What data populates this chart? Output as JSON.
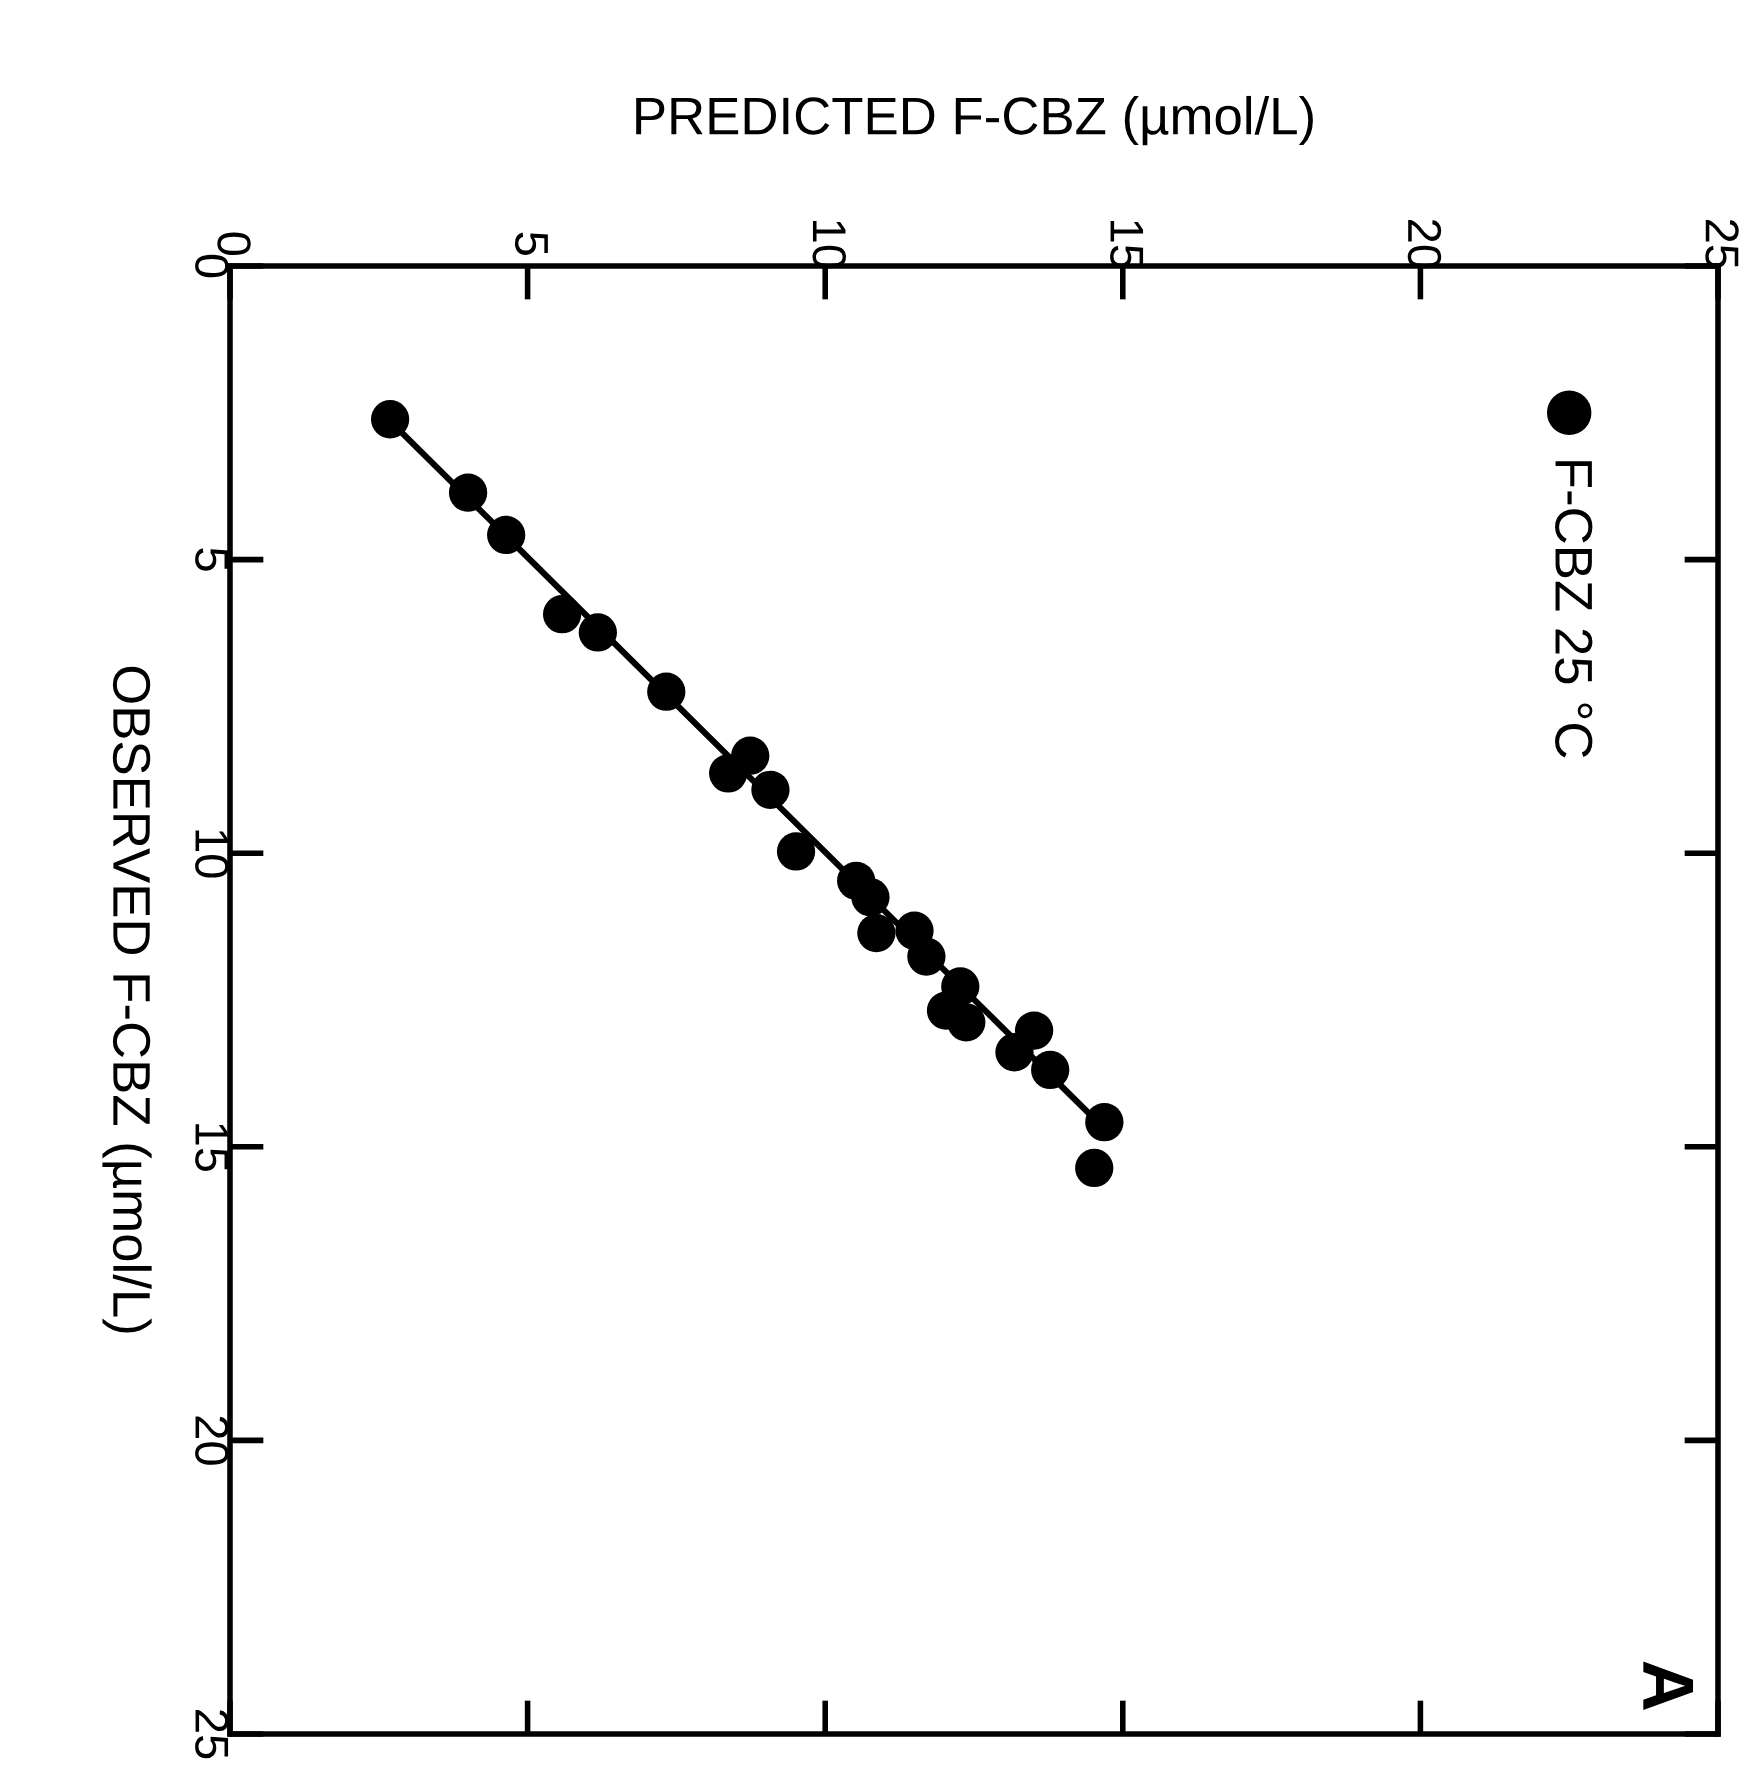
{
  "chart_data": {
    "type": "scatter",
    "xlabel": "PREDICTED F-CBZ (µmol/L)",
    "ylabel": "OBSERVED F-CBZ (µmol/L)",
    "xlim": [
      0,
      25
    ],
    "xticks": [
      0,
      5,
      10,
      15,
      20,
      25
    ],
    "ylim": [
      25,
      0
    ],
    "yticks": [
      0,
      5,
      10,
      15,
      20,
      25
    ],
    "grid": false,
    "legend": "top right",
    "annotations": [
      "A"
    ],
    "series": [
      {
        "name": "F-CBZ 25 °C",
        "color": "#000000",
        "marker": "circle",
        "x": [
          2.69,
          4.0,
          4.64,
          5.58,
          6.18,
          7.33,
          8.37,
          8.74,
          9.08,
          9.51,
          10.52,
          10.76,
          10.86,
          11.5,
          11.7,
          12.27,
          12.03,
          12.37,
          13.51,
          13.18,
          13.78,
          14.69,
          14.52
        ],
        "values": [
          2.61,
          3.86,
          4.58,
          5.93,
          6.24,
          7.25,
          8.64,
          8.34,
          8.92,
          9.97,
          10.47,
          10.75,
          11.36,
          11.32,
          11.76,
          12.27,
          12.68,
          12.88,
          13.02,
          13.39,
          13.69,
          14.58,
          15.36
        ]
      },
      {
        "color": "#000000",
        "type": "line",
        "line_style": "solid",
        "x": [
          2.65,
          14.6
        ],
        "values": [
          2.6,
          14.6
        ]
      }
    ]
  }
}
